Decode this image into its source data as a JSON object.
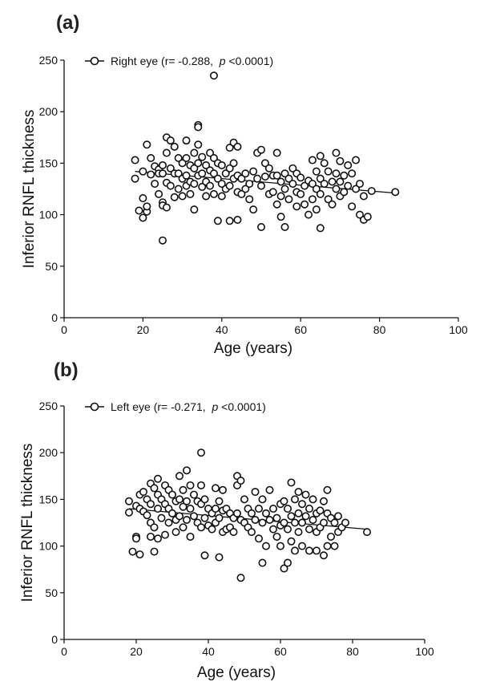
{
  "chart_data": [
    {
      "type": "scatter",
      "panel_label": "(a)",
      "xlabel": "Age (years)",
      "ylabel": "Inferior RNFL thickness",
      "xlim": [
        0,
        100
      ],
      "ylim": [
        0,
        250
      ],
      "x_ticks": [
        "0",
        "20",
        "40",
        "60",
        "80",
        "100"
      ],
      "y_ticks": [
        "0",
        "50",
        "100",
        "150",
        "200",
        "250"
      ],
      "legend": {
        "prefix": "Right eye (r= -0.288,  ",
        "p": "p",
        "suffix": " <0.0001)",
        "placement": "top-left"
      },
      "trend": {
        "x": [
          18,
          84
        ],
        "y": [
          142,
          121
        ]
      },
      "points": [
        [
          18,
          153
        ],
        [
          18,
          135
        ],
        [
          19,
          104
        ],
        [
          20,
          142
        ],
        [
          20,
          116
        ],
        [
          20,
          97
        ],
        [
          21,
          168
        ],
        [
          21,
          103
        ],
        [
          21,
          108
        ],
        [
          22,
          155
        ],
        [
          22,
          139
        ],
        [
          23,
          147
        ],
        [
          23,
          130
        ],
        [
          24,
          144
        ],
        [
          24,
          120
        ],
        [
          24,
          140
        ],
        [
          25,
          148
        ],
        [
          25,
          140
        ],
        [
          25,
          112
        ],
        [
          25,
          109
        ],
        [
          25,
          75
        ],
        [
          26,
          175
        ],
        [
          26,
          160
        ],
        [
          26,
          131
        ],
        [
          26,
          107
        ],
        [
          27,
          172
        ],
        [
          27,
          145
        ],
        [
          27,
          128
        ],
        [
          28,
          166
        ],
        [
          28,
          140
        ],
        [
          28,
          117
        ],
        [
          29,
          155
        ],
        [
          29,
          140
        ],
        [
          29,
          125
        ],
        [
          30,
          150
        ],
        [
          30,
          135
        ],
        [
          30,
          118
        ],
        [
          31,
          172
        ],
        [
          31,
          155
        ],
        [
          31,
          138
        ],
        [
          31,
          128
        ],
        [
          32,
          148
        ],
        [
          32,
          132
        ],
        [
          32,
          120
        ],
        [
          33,
          160
        ],
        [
          33,
          145
        ],
        [
          33,
          130
        ],
        [
          33,
          105
        ],
        [
          34,
          187
        ],
        [
          34,
          185
        ],
        [
          34,
          168
        ],
        [
          34,
          150
        ],
        [
          34,
          138
        ],
        [
          35,
          156
        ],
        [
          35,
          140
        ],
        [
          35,
          127
        ],
        [
          36,
          148
        ],
        [
          36,
          132
        ],
        [
          36,
          118
        ],
        [
          37,
          160
        ],
        [
          37,
          143
        ],
        [
          37,
          128
        ],
        [
          38,
          235
        ],
        [
          38,
          155
        ],
        [
          38,
          140
        ],
        [
          38,
          120
        ],
        [
          39,
          150
        ],
        [
          39,
          135
        ],
        [
          39,
          94
        ],
        [
          40,
          148
        ],
        [
          40,
          130
        ],
        [
          40,
          118
        ],
        [
          41,
          140
        ],
        [
          41,
          125
        ],
        [
          42,
          165
        ],
        [
          42,
          145
        ],
        [
          42,
          128
        ],
        [
          42,
          94
        ],
        [
          43,
          170
        ],
        [
          43,
          150
        ],
        [
          43,
          135
        ],
        [
          44,
          166
        ],
        [
          44,
          138
        ],
        [
          44,
          122
        ],
        [
          44,
          95
        ],
        [
          45,
          135
        ],
        [
          45,
          120
        ],
        [
          46,
          140
        ],
        [
          46,
          125
        ],
        [
          47,
          130
        ],
        [
          47,
          115
        ],
        [
          48,
          142
        ],
        [
          48,
          105
        ],
        [
          49,
          160
        ],
        [
          49,
          135
        ],
        [
          50,
          163
        ],
        [
          50,
          128
        ],
        [
          50,
          88
        ],
        [
          51,
          150
        ],
        [
          51,
          137
        ],
        [
          52,
          145
        ],
        [
          52,
          120
        ],
        [
          53,
          138
        ],
        [
          53,
          122
        ],
        [
          54,
          160
        ],
        [
          54,
          138
        ],
        [
          54,
          110
        ],
        [
          55,
          132
        ],
        [
          55,
          118
        ],
        [
          55,
          98
        ],
        [
          56,
          140
        ],
        [
          56,
          125
        ],
        [
          56,
          88
        ],
        [
          57,
          135
        ],
        [
          57,
          115
        ],
        [
          58,
          145
        ],
        [
          58,
          130
        ],
        [
          59,
          140
        ],
        [
          59,
          122
        ],
        [
          59,
          108
        ],
        [
          60,
          136
        ],
        [
          60,
          120
        ],
        [
          61,
          128
        ],
        [
          61,
          110
        ],
        [
          62,
          133
        ],
        [
          62,
          100
        ],
        [
          63,
          153
        ],
        [
          63,
          130
        ],
        [
          63,
          115
        ],
        [
          64,
          142
        ],
        [
          64,
          125
        ],
        [
          64,
          105
        ],
        [
          65,
          157
        ],
        [
          65,
          135
        ],
        [
          65,
          120
        ],
        [
          65,
          87
        ],
        [
          66,
          150
        ],
        [
          66,
          130
        ],
        [
          67,
          142
        ],
        [
          67,
          115
        ],
        [
          68,
          132
        ],
        [
          68,
          110
        ],
        [
          69,
          160
        ],
        [
          69,
          140
        ],
        [
          69,
          125
        ],
        [
          70,
          152
        ],
        [
          70,
          132
        ],
        [
          70,
          118
        ],
        [
          71,
          138
        ],
        [
          71,
          122
        ],
        [
          72,
          148
        ],
        [
          72,
          128
        ],
        [
          73,
          140
        ],
        [
          73,
          108
        ],
        [
          74,
          153
        ],
        [
          74,
          125
        ],
        [
          75,
          130
        ],
        [
          75,
          100
        ],
        [
          76,
          118
        ],
        [
          76,
          95
        ],
        [
          77,
          98
        ],
        [
          78,
          123
        ],
        [
          84,
          122
        ]
      ]
    },
    {
      "type": "scatter",
      "panel_label": "(b)",
      "xlabel": "Age (years)",
      "ylabel": "Inferior RNFL thickness",
      "xlim": [
        0,
        100
      ],
      "ylim": [
        0,
        250
      ],
      "x_ticks": [
        "0",
        "20",
        "40",
        "60",
        "80",
        "100"
      ],
      "y_ticks": [
        "0",
        "50",
        "100",
        "150",
        "200",
        "250"
      ],
      "legend": {
        "prefix": "Left eye (r= -0.271,  ",
        "p": "p",
        "suffix": " <0.0001)",
        "placement": "top-left"
      },
      "trend": {
        "x": [
          18,
          84
        ],
        "y": [
          140,
          118
        ]
      },
      "points": [
        [
          18,
          148
        ],
        [
          18,
          136
        ],
        [
          19,
          94
        ],
        [
          20,
          143
        ],
        [
          20,
          110
        ],
        [
          20,
          108
        ],
        [
          21,
          155
        ],
        [
          21,
          140
        ],
        [
          21,
          91
        ],
        [
          22,
          158
        ],
        [
          22,
          137
        ],
        [
          23,
          150
        ],
        [
          23,
          133
        ],
        [
          24,
          167
        ],
        [
          24,
          145
        ],
        [
          24,
          125
        ],
        [
          24,
          110
        ],
        [
          25,
          162
        ],
        [
          25,
          120
        ],
        [
          25,
          94
        ],
        [
          26,
          172
        ],
        [
          26,
          155
        ],
        [
          26,
          140
        ],
        [
          26,
          108
        ],
        [
          27,
          150
        ],
        [
          27,
          130
        ],
        [
          28,
          165
        ],
        [
          28,
          145
        ],
        [
          28,
          112
        ],
        [
          29,
          160
        ],
        [
          29,
          140
        ],
        [
          29,
          125
        ],
        [
          30,
          155
        ],
        [
          30,
          135
        ],
        [
          31,
          148
        ],
        [
          31,
          128
        ],
        [
          31,
          115
        ],
        [
          32,
          175
        ],
        [
          32,
          150
        ],
        [
          32,
          132
        ],
        [
          33,
          160
        ],
        [
          33,
          142
        ],
        [
          33,
          120
        ],
        [
          34,
          181
        ],
        [
          34,
          148
        ],
        [
          34,
          128
        ],
        [
          35,
          165
        ],
        [
          35,
          140
        ],
        [
          35,
          110
        ],
        [
          36,
          155
        ],
        [
          36,
          132
        ],
        [
          37,
          148
        ],
        [
          37,
          125
        ],
        [
          38,
          200
        ],
        [
          38,
          165
        ],
        [
          38,
          145
        ],
        [
          38,
          120
        ],
        [
          39,
          150
        ],
        [
          39,
          130
        ],
        [
          39,
          90
        ],
        [
          40,
          140
        ],
        [
          40,
          122
        ],
        [
          41,
          135
        ],
        [
          41,
          118
        ],
        [
          42,
          162
        ],
        [
          42,
          140
        ],
        [
          42,
          125
        ],
        [
          43,
          148
        ],
        [
          43,
          130
        ],
        [
          43,
          88
        ],
        [
          44,
          160
        ],
        [
          44,
          138
        ],
        [
          44,
          115
        ],
        [
          45,
          140
        ],
        [
          45,
          118
        ],
        [
          46,
          135
        ],
        [
          46,
          120
        ],
        [
          47,
          130
        ],
        [
          47,
          115
        ],
        [
          48,
          175
        ],
        [
          48,
          165
        ],
        [
          48,
          135
        ],
        [
          49,
          170
        ],
        [
          49,
          128
        ],
        [
          49,
          66
        ],
        [
          50,
          150
        ],
        [
          50,
          125
        ],
        [
          51,
          140
        ],
        [
          51,
          120
        ],
        [
          52,
          135
        ],
        [
          52,
          115
        ],
        [
          53,
          158
        ],
        [
          53,
          128
        ],
        [
          54,
          140
        ],
        [
          54,
          108
        ],
        [
          55,
          150
        ],
        [
          55,
          125
        ],
        [
          55,
          82
        ],
        [
          56,
          135
        ],
        [
          56,
          100
        ],
        [
          57,
          160
        ],
        [
          57,
          128
        ],
        [
          58,
          140
        ],
        [
          58,
          118
        ],
        [
          59,
          130
        ],
        [
          59,
          110
        ],
        [
          60,
          145
        ],
        [
          60,
          122
        ],
        [
          60,
          100
        ],
        [
          61,
          148
        ],
        [
          61,
          125
        ],
        [
          61,
          76
        ],
        [
          62,
          140
        ],
        [
          62,
          118
        ],
        [
          62,
          82
        ],
        [
          63,
          168
        ],
        [
          63,
          132
        ],
        [
          63,
          105
        ],
        [
          64,
          150
        ],
        [
          64,
          125
        ],
        [
          64,
          95
        ],
        [
          65,
          158
        ],
        [
          65,
          135
        ],
        [
          65,
          115
        ],
        [
          66,
          145
        ],
        [
          66,
          125
        ],
        [
          66,
          100
        ],
        [
          67,
          155
        ],
        [
          67,
          132
        ],
        [
          68,
          140
        ],
        [
          68,
          118
        ],
        [
          68,
          95
        ],
        [
          69,
          150
        ],
        [
          69,
          128
        ],
        [
          70,
          135
        ],
        [
          70,
          115
        ],
        [
          70,
          95
        ],
        [
          71,
          138
        ],
        [
          71,
          120
        ],
        [
          72,
          148
        ],
        [
          72,
          125
        ],
        [
          72,
          90
        ],
        [
          73,
          160
        ],
        [
          73,
          135
        ],
        [
          73,
          100
        ],
        [
          74,
          130
        ],
        [
          74,
          110
        ],
        [
          75,
          125
        ],
        [
          75,
          100
        ],
        [
          76,
          132
        ],
        [
          76,
          115
        ],
        [
          77,
          120
        ],
        [
          78,
          125
        ],
        [
          84,
          115
        ]
      ]
    }
  ]
}
